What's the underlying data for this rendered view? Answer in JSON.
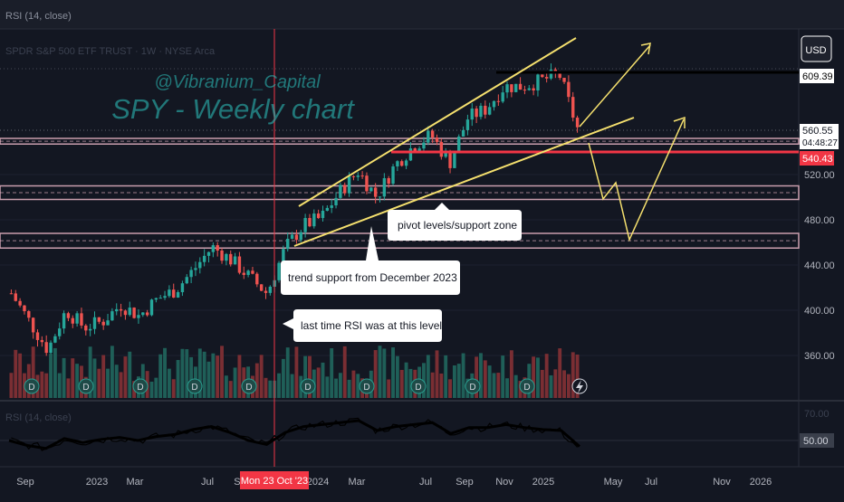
{
  "top_bar": {
    "label": "RSI (14, close)"
  },
  "header": {
    "symbol_line": "SPDR S&P 500 ETF TRUST · 1W · NYSE Arca",
    "currency": "USD"
  },
  "watermark": {
    "handle": "@Vibranium_Capital",
    "title": "SPY - Weekly chart"
  },
  "price_axis": {
    "ticks": [
      "520.00",
      "480.00",
      "440.00",
      "400.00",
      "360.00"
    ]
  },
  "price_labels": {
    "black_level": "609.39",
    "current": "560.55",
    "countdown": "04:48:27",
    "red_level": "540.43"
  },
  "annotations": {
    "pivot": "pivot levels/support zone",
    "trend": "trend support from December 2023",
    "rsi_note": "last time RSI was at this level"
  },
  "rsi_pane": {
    "label": "RSI (14, close)",
    "top_tick": "70.00",
    "level_tick": "50.00"
  },
  "time_axis": {
    "labels": [
      "Sep",
      "2023",
      "Mar",
      "Jul",
      "Sep",
      "2024",
      "Mar",
      "Jul",
      "Sep",
      "Nov",
      "2025",
      "May",
      "Jul",
      "Nov",
      "2026"
    ],
    "highlight": "Mon 23 Oct '23"
  },
  "colors": {
    "up": "#26a69a",
    "down": "#ef5350",
    "trendline": "#f5e06e",
    "accent_line": "#f23645",
    "zone": "#f7c1d1",
    "background": "#131722"
  },
  "icons": {
    "dividend": "dividend-marker-icon",
    "flash": "flash-icon"
  },
  "chart_data": {
    "type": "candlestick",
    "title": "SPY - Weekly chart",
    "timeframe": "1W",
    "ylim": [
      345,
      650
    ],
    "yticks": [
      520,
      480,
      440,
      400,
      360
    ],
    "close_path": [
      [
        "Aug 2022",
        415
      ],
      [
        "Sep 2022",
        390
      ],
      [
        "Oct 2022",
        365
      ],
      [
        "Nov 2022",
        400
      ],
      [
        "Dec 2022",
        385
      ],
      [
        "Jan 2023",
        390
      ],
      [
        "Feb 2023",
        405
      ],
      [
        "Mar 2023",
        395
      ],
      [
        "Apr 2023",
        410
      ],
      [
        "May 2023",
        418
      ],
      [
        "Jun 2023",
        436
      ],
      [
        "Jul 2023",
        456
      ],
      [
        "Aug 2023",
        445
      ],
      [
        "Sep 2023",
        430
      ],
      [
        "Oct 2023",
        415
      ],
      [
        "Nov 2023",
        455
      ],
      [
        "Dec 2023",
        475
      ],
      [
        "Jan 2024",
        482
      ],
      [
        "Feb 2024",
        505
      ],
      [
        "Mar 2024",
        523
      ],
      [
        "Apr 2024",
        500
      ],
      [
        "May 2024",
        528
      ],
      [
        "Jun 2024",
        545
      ],
      [
        "Jul 2024",
        555
      ],
      [
        "Aug 2024",
        530
      ],
      [
        "Sep 2024",
        570
      ],
      [
        "Oct 2024",
        578
      ],
      [
        "Nov 2024",
        598
      ],
      [
        "Dec 2024",
        598
      ],
      [
        "Jan 2025",
        603
      ],
      [
        "Feb 2025",
        609
      ],
      [
        "Mar 2025",
        561
      ]
    ],
    "levels": [
      {
        "label": "609.39",
        "value": 609.39,
        "color": "#000000"
      },
      {
        "label": "540.43",
        "value": 540.43,
        "color": "#f23645"
      }
    ],
    "current_price": 560.55,
    "support_zones": [
      [
        547,
        552
      ],
      [
        498,
        510
      ],
      [
        455,
        468
      ]
    ],
    "highlighted_date": "Mon 23 Oct '23",
    "projection_paths": [
      [
        [
          "Mar 2025",
          560
        ],
        [
          "May 2025",
          640
        ]
      ],
      [
        [
          "Mar 2025",
          560
        ],
        [
          "Apr 2025",
          500
        ],
        [
          "May 2025",
          520
        ],
        [
          "Jun 2025",
          465
        ],
        [
          "Aug 2025",
          600
        ]
      ]
    ],
    "rsi": {
      "period": 14,
      "ylim": [
        30,
        80
      ],
      "ticks": [
        70,
        50
      ],
      "values": [
        50,
        45,
        42,
        52,
        48,
        51,
        53,
        50,
        54,
        56,
        61,
        64,
        58,
        50,
        46,
        58,
        64,
        66,
        68,
        70,
        60,
        64,
        66,
        68,
        57,
        63,
        63,
        66,
        63,
        61,
        60,
        44
      ]
    }
  }
}
